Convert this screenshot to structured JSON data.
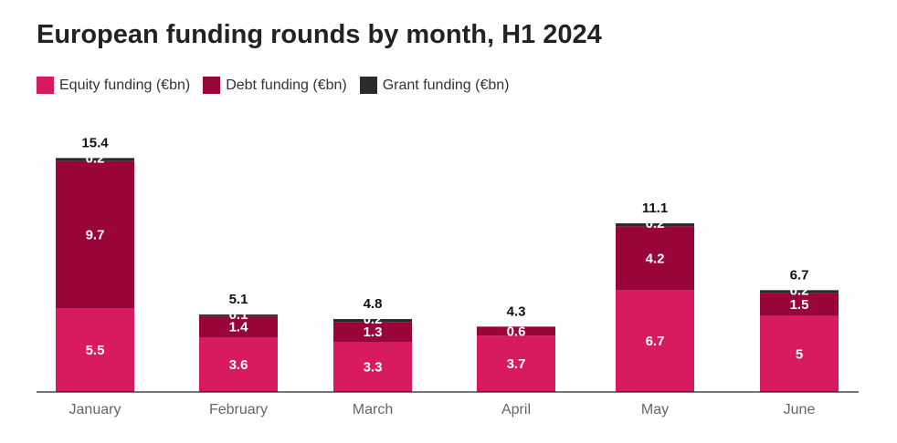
{
  "chart_data": {
    "type": "bar",
    "stacked": true,
    "title": "European funding rounds by month, H1 2024",
    "categories": [
      "January",
      "February",
      "March",
      "April",
      "May",
      "June"
    ],
    "series": [
      {
        "name": "Equity funding (€bn)",
        "color": "#d81b60",
        "values": [
          5.5,
          3.6,
          3.3,
          3.7,
          6.7,
          5
        ],
        "labels": [
          "5.5",
          "3.6",
          "3.3",
          "3.7",
          "6.7",
          "5"
        ]
      },
      {
        "name": "Debt funding (€bn)",
        "color": "#990539",
        "values": [
          9.7,
          1.4,
          1.3,
          0.6,
          4.2,
          1.5
        ],
        "labels": [
          "9.7",
          "1.4",
          "1.3",
          "0.6",
          "4.2",
          "1.5"
        ]
      },
      {
        "name": "Grant funding (€bn)",
        "color": "#2b2b2b",
        "values": [
          0.2,
          0.1,
          0.2,
          0,
          0.2,
          0.2
        ],
        "labels": [
          "0.2",
          "0.1",
          "0.2",
          "",
          "0.2",
          "0.2"
        ]
      }
    ],
    "totals": [
      "15.4",
      "5.1",
      "4.8",
      "4.3",
      "11.1",
      "6.7"
    ],
    "ylim": [
      0,
      16.8
    ],
    "grid": false,
    "legend_position": "top-left"
  }
}
